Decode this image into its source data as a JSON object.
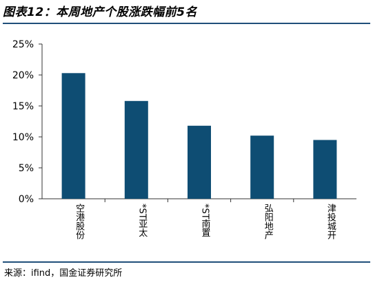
{
  "title": "图表12：本周地产个股涨跌幅前5名",
  "source": "来源：ifind，国金证券研究所",
  "colors": {
    "bar": "#0e4d73",
    "rule": "#1f4e79",
    "axis": "#333333"
  },
  "chart_data": {
    "type": "bar",
    "categories": [
      "空港股份",
      "*ST亚太",
      "*ST南置",
      "弘阳地产",
      "津投城开"
    ],
    "values": [
      20.3,
      15.8,
      11.8,
      10.2,
      9.5
    ],
    "unit": "%",
    "ylim": [
      0,
      25
    ],
    "yticks": [
      0,
      5,
      10,
      15,
      20,
      25
    ],
    "ytick_labels": [
      "0%",
      "5%",
      "10%",
      "15%",
      "20%",
      "25%"
    ],
    "grid": false,
    "legend": "none"
  }
}
